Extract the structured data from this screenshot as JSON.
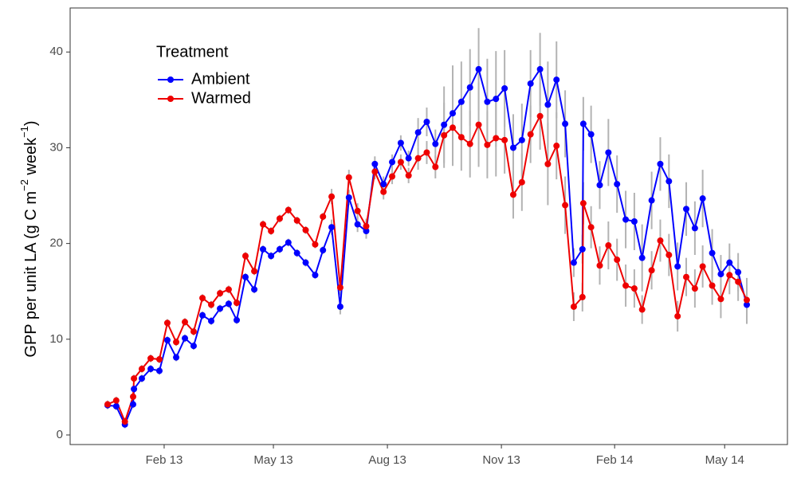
{
  "chart_data": {
    "type": "line",
    "y_label": [
      "GPP per unit LA (g C m",
      "−2",
      " week",
      "−1",
      ")"
    ],
    "legend_title": "Treatment",
    "legend_position": "top-left",
    "grid": false,
    "error_color": "#b3b3b3",
    "x": [
      0,
      1,
      2,
      2.95,
      3.05,
      3.96,
      4.98,
      5.99,
      6.91,
      7.93,
      8.94,
      9.95,
      10.97,
      11.98,
      13.0,
      14.0,
      14.93,
      15.94,
      16.96,
      17.97,
      18.9,
      19.9,
      20.9,
      21.9,
      22.9,
      24.0,
      24.9,
      25.9,
      26.9,
      27.9,
      28.9,
      29.9,
      30.9,
      31.9,
      32.9,
      33.9,
      34.8,
      35.9,
      36.9,
      37.9,
      38.9,
      39.9,
      40.9,
      41.9,
      42.9,
      43.9,
      44.9,
      45.9,
      46.9,
      47.9,
      48.9,
      50.0,
      50.9,
      51.9,
      52.9,
      53.9,
      54.9,
      55.0,
      55.9,
      56.9,
      57.9,
      58.9,
      59.9,
      60.9,
      61.8,
      62.9,
      63.9,
      64.9,
      65.9,
      66.9,
      67.9,
      68.8,
      69.9,
      70.9,
      71.9,
      72.9,
      73.9
    ],
    "xlim": [
      -4.33,
      78.6
    ],
    "xticks": [
      {
        "value": 6.54,
        "label": "Feb 13"
      },
      {
        "value": 19.17,
        "label": "May 13"
      },
      {
        "value": 32.35,
        "label": "Aug 13"
      },
      {
        "value": 45.53,
        "label": "Nov 13"
      },
      {
        "value": 58.62,
        "label": "Feb 14"
      },
      {
        "value": 71.34,
        "label": "May 14"
      }
    ],
    "ylim": [
      -1.0,
      44.6
    ],
    "yticks": [
      0,
      10,
      20,
      30,
      40
    ],
    "series": [
      {
        "name": "Ambient",
        "color": "#0000ff",
        "values": [
          3.1,
          3.0,
          1.1,
          3.2,
          4.8,
          5.9,
          6.9,
          6.7,
          9.9,
          8.1,
          10.1,
          9.3,
          12.5,
          11.9,
          13.2,
          13.7,
          12.0,
          16.5,
          15.2,
          19.4,
          18.7,
          19.4,
          20.1,
          19.0,
          18.0,
          16.7,
          19.3,
          21.7,
          13.4,
          24.8,
          22.0,
          21.3,
          28.3,
          26.2,
          28.5,
          30.5,
          28.9,
          31.6,
          32.7,
          30.4,
          32.4,
          33.6,
          34.8,
          36.3,
          38.2,
          34.8,
          35.1,
          36.2,
          30.0,
          30.8,
          36.7,
          38.2,
          34.5,
          37.1,
          32.5,
          18.0,
          19.4,
          32.5,
          31.4,
          26.1,
          29.5,
          26.2,
          22.5,
          22.3,
          18.5,
          24.5,
          28.3,
          26.5,
          17.6,
          23.6,
          21.6,
          24.7,
          19.0,
          16.8,
          18.0,
          17.0,
          13.6
        ],
        "errors": [
          0.4,
          0.4,
          0.4,
          0.4,
          0.4,
          0.4,
          0.4,
          0.4,
          0.4,
          0.4,
          0.4,
          0.4,
          0.4,
          0.4,
          0.4,
          0.4,
          0.4,
          0.4,
          0.4,
          0.4,
          0.4,
          0.4,
          0.4,
          0.4,
          0.4,
          0.4,
          0.4,
          0.8,
          0.8,
          0.8,
          0.8,
          0.8,
          0.8,
          0.8,
          0.8,
          0.8,
          0.8,
          1.5,
          1.5,
          1.5,
          4.0,
          5.0,
          4.2,
          4.0,
          4.3,
          4.5,
          5.0,
          4.0,
          3.5,
          3.8,
          3.5,
          3.8,
          4.5,
          4.0,
          3.5,
          1.5,
          1.5,
          2.8,
          3.0,
          2.5,
          3.5,
          3.0,
          3.0,
          3.0,
          3.5,
          3.0,
          2.8,
          2.8,
          2.5,
          2.8,
          2.8,
          3.0,
          2.5,
          2.0,
          2.0,
          2.0,
          2.0
        ]
      },
      {
        "name": "Warmed",
        "color": "#ee0000",
        "values": [
          3.2,
          3.6,
          1.4,
          4.0,
          5.9,
          6.9,
          8.0,
          7.9,
          11.7,
          9.7,
          11.8,
          10.8,
          14.3,
          13.6,
          14.8,
          15.2,
          13.8,
          18.7,
          17.1,
          22.0,
          21.3,
          22.6,
          23.5,
          22.4,
          21.4,
          19.9,
          22.8,
          24.9,
          15.4,
          26.9,
          23.4,
          21.8,
          27.5,
          25.4,
          27.0,
          28.5,
          27.1,
          28.9,
          29.5,
          28.0,
          31.3,
          32.1,
          31.1,
          30.4,
          32.4,
          30.3,
          31.0,
          30.8,
          25.1,
          26.4,
          31.4,
          33.3,
          28.3,
          30.2,
          24.0,
          13.4,
          14.4,
          24.2,
          21.7,
          17.7,
          19.8,
          18.3,
          15.6,
          15.3,
          13.1,
          17.2,
          20.3,
          18.8,
          12.4,
          16.5,
          15.3,
          17.6,
          15.6,
          14.2,
          16.7,
          16.0,
          14.1
        ],
        "errors": [
          0.4,
          0.4,
          0.4,
          0.4,
          0.4,
          0.4,
          0.4,
          0.4,
          0.4,
          0.4,
          0.4,
          0.4,
          0.4,
          0.4,
          0.4,
          0.4,
          0.4,
          0.4,
          0.4,
          0.4,
          0.4,
          0.4,
          0.4,
          0.4,
          0.4,
          0.4,
          0.4,
          0.8,
          0.8,
          0.8,
          0.8,
          0.8,
          0.8,
          0.8,
          0.8,
          0.8,
          0.8,
          1.2,
          1.2,
          1.2,
          3.4,
          4.0,
          3.5,
          3.5,
          4.4,
          3.5,
          4.0,
          3.5,
          2.5,
          3.0,
          3.0,
          3.5,
          4.3,
          3.5,
          3.0,
          1.5,
          1.5,
          2.2,
          2.2,
          2.0,
          2.5,
          2.2,
          2.2,
          2.0,
          1.5,
          2.0,
          2.2,
          2.2,
          1.6,
          2.0,
          2.0,
          2.2,
          2.0,
          2.0,
          2.0,
          2.0,
          2.3
        ]
      }
    ]
  }
}
